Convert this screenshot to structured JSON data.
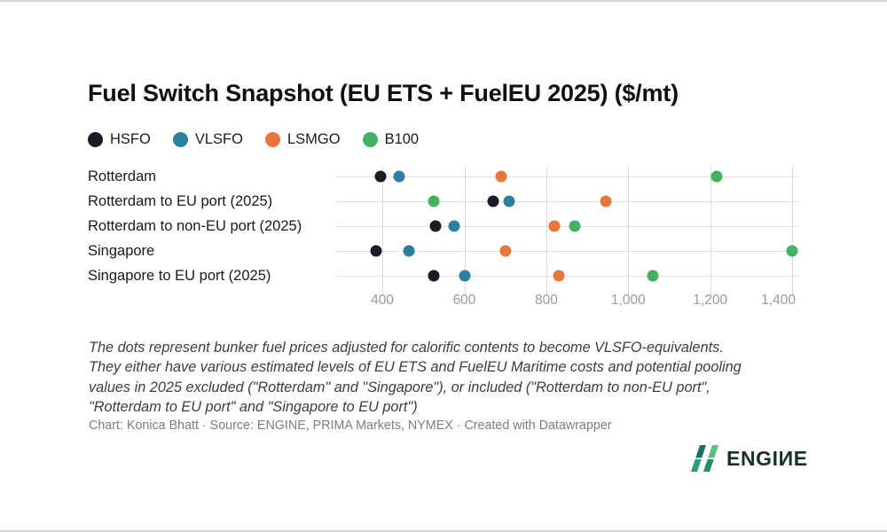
{
  "chart": {
    "title": "Fuel Switch Snapshot (EU ETS + FuelEU 2025) ($/mt)"
  },
  "chart_data": {
    "type": "scatter",
    "title": "Fuel Switch Snapshot (EU ETS + FuelEU 2025) ($/mt)",
    "unit": "$/mt",
    "orientation": "horizontal-dot-plot",
    "categories": [
      "Rotterdam",
      "Rotterdam to EU port (2025)",
      "Rotterdam to non-EU port (2025)",
      "Singapore",
      "Singapore to EU port (2025)"
    ],
    "series": [
      {
        "name": "HSFO",
        "color": "#1b1b25",
        "values": [
          395,
          670,
          530,
          385,
          525
        ]
      },
      {
        "name": "VLSFO",
        "color": "#2d7f9e",
        "values": [
          440,
          710,
          575,
          465,
          600
        ]
      },
      {
        "name": "LSMGO",
        "color": "#e7763c",
        "values": [
          690,
          945,
          820,
          700,
          830
        ]
      },
      {
        "name": "B100",
        "color": "#45b05f",
        "values": [
          1215,
          525,
          870,
          1400,
          1060
        ]
      }
    ],
    "x_axis": {
      "min": 285,
      "max": 1415,
      "ticks": [
        400,
        600,
        800,
        1000,
        1200,
        1400
      ],
      "tick_labels": [
        "400",
        "600",
        "800",
        "1,000",
        "1,200",
        "1,400"
      ]
    },
    "grid": true,
    "legend_position": "top"
  },
  "notes": {
    "lines": [
      "The dots represent bunker fuel prices adjusted for calorific contents to become VLSFO-equivalents.",
      "They either have various estimated levels of EU ETS and FuelEU Maritime costs and potential pooling",
      "values in 2025 excluded (\"Rotterdam\" and \"Singapore\"), or included (\"Rotterdam to non-EU port\",",
      "\"Rotterdam to EU port\" and \"Singapore to EU port\")"
    ]
  },
  "attribution": "Chart: Konica Bhatt · Source: ENGINE, PRIMA Markets, NYMEX · Created with Datawrapper",
  "logo": {
    "text": "ENGIИE"
  }
}
